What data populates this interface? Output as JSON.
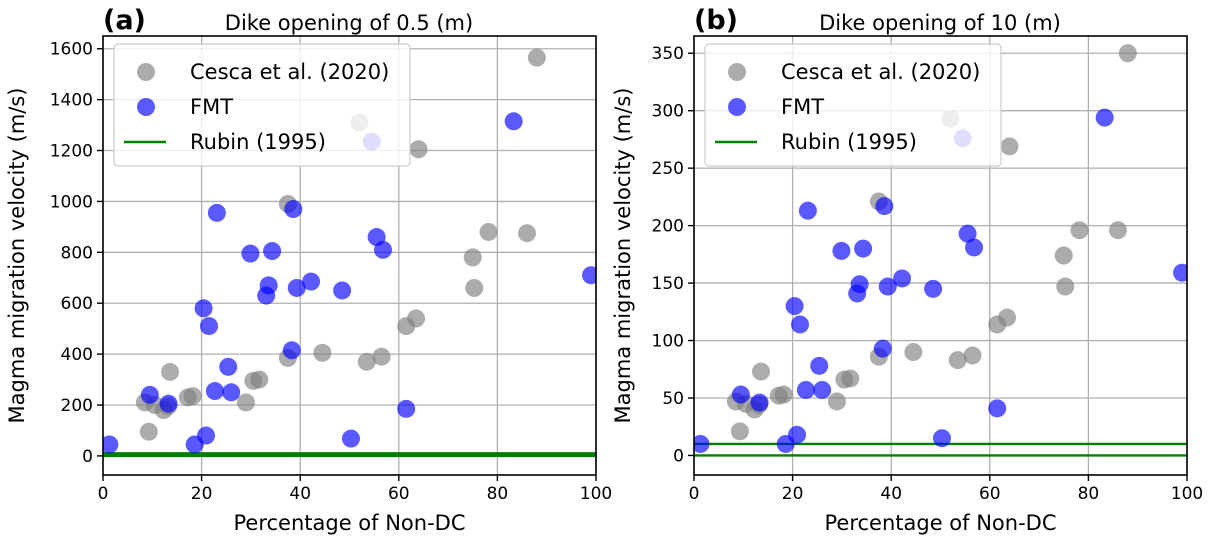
{
  "chart_data": [
    {
      "type": "scatter",
      "panel_label": "(a)",
      "title": "Dike opening of 0.5 (m)",
      "xlabel": "Percentage of Non-DC",
      "ylabel": "Magma migration velocity (m/s)",
      "xlim": [
        0,
        100
      ],
      "ylim": [
        -75,
        1650
      ],
      "xticks": [
        0,
        20,
        40,
        60,
        80,
        100
      ],
      "yticks": [
        0,
        200,
        400,
        600,
        800,
        1000,
        1200,
        1400,
        1600
      ],
      "grid": true,
      "legend_position": "top-left",
      "series": [
        {
          "name": "Cesca et al. (2020)",
          "kind": "points",
          "color": "#808080",
          "points": [
            [
              8.5,
              210
            ],
            [
              9.3,
              95
            ],
            [
              10.5,
              200
            ],
            [
              12.3,
              180
            ],
            [
              13.2,
              195
            ],
            [
              13.6,
              330
            ],
            [
              17.2,
              230
            ],
            [
              18.2,
              235
            ],
            [
              29,
              210
            ],
            [
              30.5,
              295
            ],
            [
              31.7,
              300
            ],
            [
              37.5,
              385
            ],
            [
              37.5,
              990
            ],
            [
              44.5,
              405
            ],
            [
              52,
              1310
            ],
            [
              53.5,
              370
            ],
            [
              56.5,
              390
            ],
            [
              61.5,
              510
            ],
            [
              63.5,
              540
            ],
            [
              64,
              1205
            ],
            [
              75,
              780
            ],
            [
              75.3,
              660
            ],
            [
              78.2,
              880
            ],
            [
              86,
              875
            ],
            [
              88,
              1565
            ]
          ]
        },
        {
          "name": "FMT",
          "kind": "points",
          "color": "#0000ff",
          "points": [
            [
              1.3,
              45
            ],
            [
              9.5,
              240
            ],
            [
              13.3,
              205
            ],
            [
              18.6,
              45
            ],
            [
              20.4,
              580
            ],
            [
              20.9,
              80
            ],
            [
              21.5,
              510
            ],
            [
              22.7,
              255
            ],
            [
              23.1,
              955
            ],
            [
              25.4,
              350
            ],
            [
              26,
              250
            ],
            [
              29.9,
              795
            ],
            [
              33.1,
              630
            ],
            [
              33.6,
              670
            ],
            [
              34.3,
              805
            ],
            [
              38.3,
              415
            ],
            [
              38.6,
              970
            ],
            [
              39.3,
              660
            ],
            [
              42.2,
              685
            ],
            [
              48.5,
              650
            ],
            [
              50.3,
              68
            ],
            [
              54.5,
              1235
            ],
            [
              55.5,
              860
            ],
            [
              56.8,
              810
            ],
            [
              61.5,
              185
            ],
            [
              83.3,
              1315
            ],
            [
              99,
              710
            ]
          ]
        },
        {
          "name": "Rubin (1995)",
          "kind": "line",
          "color": "#008000",
          "y": 5
        }
      ]
    },
    {
      "type": "scatter",
      "panel_label": "(b)",
      "title": "Dike opening of 10 (m)",
      "xlabel": "Percentage of Non-DC",
      "ylabel": "Magma migration velocity (m/s)",
      "xlim": [
        0,
        100
      ],
      "ylim": [
        -17,
        365
      ],
      "xticks": [
        0,
        20,
        40,
        60,
        80,
        100
      ],
      "yticks": [
        0,
        50,
        100,
        150,
        200,
        250,
        300,
        350
      ],
      "grid": true,
      "legend_position": "top-left",
      "series": [
        {
          "name": "Cesca et al. (2020)",
          "kind": "points",
          "color": "#808080",
          "points": [
            [
              8.5,
              47
            ],
            [
              9.3,
              21
            ],
            [
              10.5,
              45
            ],
            [
              12.3,
              40
            ],
            [
              13.2,
              44
            ],
            [
              13.6,
              73
            ],
            [
              17.2,
              52
            ],
            [
              18.2,
              53
            ],
            [
              29,
              47
            ],
            [
              30.5,
              66
            ],
            [
              31.7,
              67
            ],
            [
              37.5,
              86
            ],
            [
              37.5,
              221
            ],
            [
              44.5,
              90
            ],
            [
              52,
              293
            ],
            [
              53.5,
              83
            ],
            [
              56.5,
              87
            ],
            [
              61.5,
              114
            ],
            [
              63.5,
              120
            ],
            [
              64,
              269
            ],
            [
              75,
              174
            ],
            [
              75.3,
              147
            ],
            [
              78.2,
              196
            ],
            [
              86,
              196
            ],
            [
              88,
              350
            ]
          ]
        },
        {
          "name": "FMT",
          "kind": "points",
          "color": "#0000ff",
          "points": [
            [
              1.3,
              10
            ],
            [
              9.5,
              53
            ],
            [
              13.3,
              46
            ],
            [
              18.6,
              10
            ],
            [
              20.4,
              130
            ],
            [
              20.9,
              18
            ],
            [
              21.5,
              114
            ],
            [
              22.7,
              57
            ],
            [
              23.1,
              213
            ],
            [
              25.4,
              78
            ],
            [
              26,
              57
            ],
            [
              29.9,
              178
            ],
            [
              33.1,
              141
            ],
            [
              33.6,
              149
            ],
            [
              34.3,
              180
            ],
            [
              38.3,
              93
            ],
            [
              38.6,
              217
            ],
            [
              39.3,
              147
            ],
            [
              42.2,
              154
            ],
            [
              48.5,
              145
            ],
            [
              50.3,
              15
            ],
            [
              54.5,
              276
            ],
            [
              55.5,
              193
            ],
            [
              56.8,
              181
            ],
            [
              61.5,
              41
            ],
            [
              83.3,
              294
            ],
            [
              99,
              159
            ]
          ]
        },
        {
          "name": "Rubin (1995)",
          "kind": "line",
          "color": "#008000",
          "y": 10
        },
        {
          "name": "",
          "kind": "line",
          "color": "#008000",
          "y": 0
        }
      ]
    }
  ]
}
